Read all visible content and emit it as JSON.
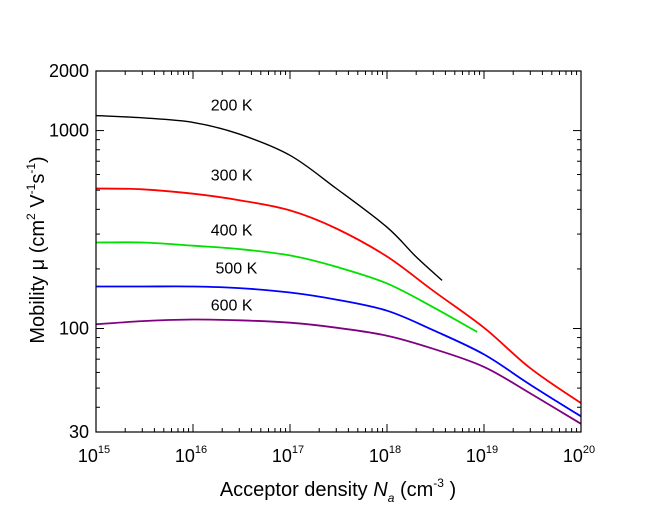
{
  "chart_data": {
    "type": "line",
    "title": "",
    "xlabel": {
      "prefix": "Acceptor density ",
      "var": "N",
      "var_sub": "a",
      "unit_open": " (cm",
      "unit_sup": "-3",
      "unit_close": " )"
    },
    "ylabel": {
      "prefix": "Mobility μ (cm",
      "sup1": "2",
      "mid1": " V",
      "sup2": "-1",
      "mid2": "s",
      "sup3": "-1",
      "close": ")"
    },
    "xscale": "log",
    "yscale": "log",
    "xlim": [
      1000000000000000.0,
      1e+20
    ],
    "ylim": [
      30,
      2000
    ],
    "grid": false,
    "x_ticks": [
      {
        "value": 1000000000000000.0,
        "base": "10",
        "exp": "15"
      },
      {
        "value": 1e+16,
        "base": "10",
        "exp": "16"
      },
      {
        "value": 1e+17,
        "base": "10",
        "exp": "17"
      },
      {
        "value": 1e+18,
        "base": "10",
        "exp": "18"
      },
      {
        "value": 1e+19,
        "base": "10",
        "exp": "19"
      },
      {
        "value": 1e+20,
        "base": "10",
        "exp": "20"
      }
    ],
    "y_ticks": [
      {
        "value": 30,
        "label": "30"
      },
      {
        "value": 100,
        "label": "100"
      },
      {
        "value": 1000,
        "label": "1000"
      },
      {
        "value": 2000,
        "label": "2000"
      }
    ],
    "series": [
      {
        "name": "200 K",
        "color": "#000000",
        "label_at": {
          "x": 2.5e+16,
          "y": 1260
        },
        "x": [
          1000000000000000.0,
          3000000000000000.0,
          1e+16,
          3e+16,
          1e+17,
          3e+17,
          1e+18,
          2e+18,
          3.7e+18
        ],
        "y": [
          1190,
          1160,
          1100,
          960,
          750,
          510,
          325,
          230,
          175
        ]
      },
      {
        "name": "300 K",
        "color": "#ff0000",
        "label_at": {
          "x": 2.5e+16,
          "y": 560
        },
        "x": [
          1000000000000000.0,
          3000000000000000.0,
          1e+16,
          3e+16,
          1e+17,
          3e+17,
          1e+18,
          3e+18,
          1e+19,
          3e+19,
          1e+20
        ],
        "y": [
          510,
          505,
          480,
          445,
          395,
          320,
          231,
          155,
          101,
          63,
          42
        ]
      },
      {
        "name": "400 K",
        "color": "#00e000",
        "label_at": {
          "x": 2.5e+16,
          "y": 295
        },
        "x": [
          1000000000000000.0,
          3000000000000000.0,
          1e+16,
          3e+16,
          1e+17,
          3e+17,
          1e+18,
          3e+18,
          8.5e+18
        ],
        "y": [
          272,
          272,
          262,
          252,
          234,
          205,
          169,
          128,
          96
        ]
      },
      {
        "name": "500 K",
        "color": "#0000ff",
        "label_at": {
          "x": 2.8e+16,
          "y": 190
        },
        "x": [
          1000000000000000.0,
          3000000000000000.0,
          1e+16,
          3e+16,
          1e+17,
          3e+17,
          1e+18,
          3e+18,
          1e+19,
          3e+19,
          1e+20
        ],
        "y": [
          163,
          163,
          163,
          160,
          152,
          140,
          123,
          98,
          74,
          52,
          36
        ]
      },
      {
        "name": "600 K",
        "color": "#800080",
        "label_at": {
          "x": 2.5e+16,
          "y": 123
        },
        "x": [
          1000000000000000.0,
          3000000000000000.0,
          1e+16,
          3e+16,
          1e+17,
          3e+17,
          1e+18,
          3e+18,
          1e+19,
          3e+19,
          1e+20
        ],
        "y": [
          105,
          109,
          111,
          110,
          107,
          101,
          92,
          79,
          64,
          47,
          33
        ]
      }
    ]
  }
}
